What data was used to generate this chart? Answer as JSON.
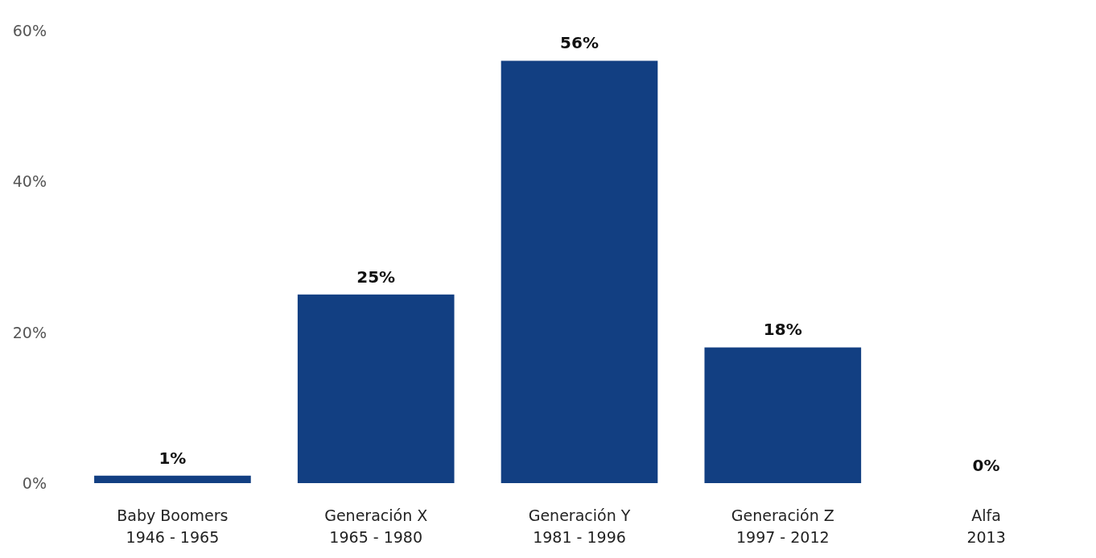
{
  "chart_data": {
    "type": "bar",
    "categories": [
      "Baby Boomers\n1946 - 1965",
      "Generación X\n1965 - 1980",
      "Generación Y\n1981 - 1996",
      "Generación Z\n1997 - 2012",
      "Alfa\n2013"
    ],
    "values": [
      1,
      25,
      56,
      18,
      0
    ],
    "value_labels": [
      "1%",
      "25%",
      "56%",
      "18%",
      "0%"
    ],
    "color": "#123f82",
    "ylim": [
      0,
      60
    ],
    "yticks": [
      {
        "value": 0,
        "label": "0%"
      },
      {
        "value": 20,
        "label": "20%"
      },
      {
        "value": 40,
        "label": "40%"
      },
      {
        "value": 60,
        "label": "60%"
      }
    ],
    "grid": false
  }
}
